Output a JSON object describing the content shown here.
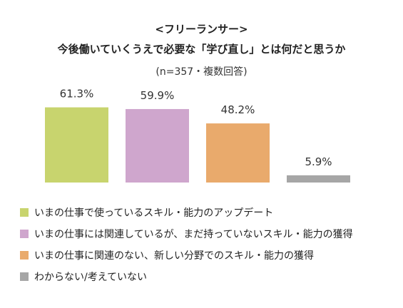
{
  "chart_data": {
    "type": "bar",
    "title": "<フリーランサー>",
    "subtitle_line": "今後働いていくうえで必要な「学び直し」とは何だと思うか",
    "note": "(n=357・複数回答)",
    "categories": [
      "いまの仕事で使っているスキル・能力のアップデート",
      "いまの仕事には関連しているが、まだ持っていないスキル・能力の獲得",
      "いまの仕事に関連のない、新しい分野でのスキル・能力の獲得",
      "わからない/考えていない"
    ],
    "values": [
      61.3,
      59.9,
      48.2,
      5.9
    ],
    "value_labels": [
      "61.3%",
      "59.9%",
      "48.2%",
      "5.9%"
    ],
    "colors": [
      "#c8d46e",
      "#cfa6cd",
      "#e9aa6c",
      "#a6a6a6"
    ],
    "ylim": [
      0,
      70
    ],
    "legend_position": "bottom",
    "grid": false
  }
}
